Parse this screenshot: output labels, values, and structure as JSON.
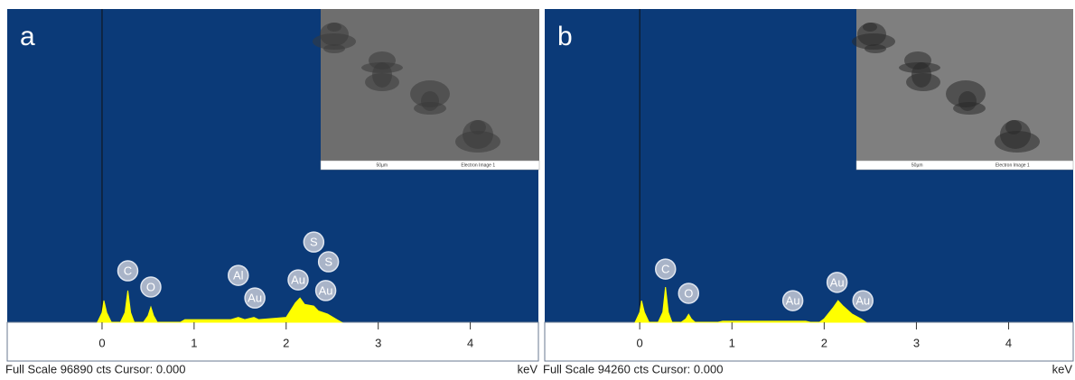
{
  "chart_data": [
    {
      "type": "area",
      "panel_label": "a",
      "color": "#ffff00",
      "x": [
        -0.05,
        0,
        0.02,
        0.05,
        0.1,
        0.2,
        0.25,
        0.28,
        0.31,
        0.35,
        0.45,
        0.5,
        0.53,
        0.56,
        0.6,
        0.85,
        0.9,
        1.4,
        1.48,
        1.55,
        1.65,
        1.7,
        2.0,
        2.1,
        2.15,
        2.2,
        2.3,
        2.35,
        2.45,
        2.55,
        2.6
      ],
      "values": [
        0,
        3000,
        6700,
        3000,
        0,
        0,
        3000,
        9800,
        3000,
        0,
        0,
        2000,
        4700,
        2000,
        0,
        0,
        800,
        800,
        1500,
        800,
        1500,
        800,
        1500,
        6000,
        7500,
        5500,
        5000,
        3500,
        2500,
        800,
        0
      ],
      "xlim": [
        -1.03,
        4.74
      ],
      "ylim": [
        0,
        96890
      ],
      "xticks": [
        0,
        1,
        2,
        3,
        4
      ],
      "x_unit": "keV",
      "footer": "Full Scale 96890 cts Cursor: 0.000",
      "inset_caption": [
        "50µm",
        "Electron Image 1"
      ],
      "peak_labels": [
        {
          "text": "C",
          "x": 0.28,
          "y": 15900
        },
        {
          "text": "O",
          "x": 0.53,
          "y": 10900
        },
        {
          "text": "Al",
          "x": 1.48,
          "y": 14500
        },
        {
          "text": "Au",
          "x": 1.66,
          "y": 7500
        },
        {
          "text": "Au",
          "x": 2.13,
          "y": 13100
        },
        {
          "text": "S",
          "x": 2.3,
          "y": 24800
        },
        {
          "text": "S",
          "x": 2.46,
          "y": 18700
        },
        {
          "text": "Au",
          "x": 2.43,
          "y": 9800
        }
      ]
    },
    {
      "type": "area",
      "panel_label": "b",
      "color": "#ffff00",
      "x": [
        -0.05,
        0,
        0.02,
        0.05,
        0.1,
        0.2,
        0.25,
        0.28,
        0.31,
        0.35,
        0.45,
        0.5,
        0.53,
        0.56,
        0.6,
        0.85,
        0.9,
        1.8,
        1.85,
        1.95,
        2.0,
        2.1,
        2.15,
        2.2,
        2.3,
        2.4,
        2.45
      ],
      "values": [
        0,
        3000,
        6500,
        3000,
        0,
        0,
        3000,
        10600,
        3000,
        0,
        0,
        1000,
        2400,
        1000,
        0,
        0,
        300,
        300,
        0,
        0,
        1000,
        4500,
        6500,
        5000,
        2500,
        1000,
        0
      ],
      "xlim": [
        -1.03,
        4.7
      ],
      "ylim": [
        0,
        94260
      ],
      "xticks": [
        0,
        1,
        2,
        3,
        4
      ],
      "x_unit": "keV",
      "footer": "Full Scale 94260 cts Cursor: 0.000",
      "inset_caption": [
        "50µm",
        "Electron Image 1"
      ],
      "peak_labels": [
        {
          "text": "C",
          "x": 0.28,
          "y": 16000
        },
        {
          "text": "O",
          "x": 0.53,
          "y": 8700
        },
        {
          "text": "Au",
          "x": 1.66,
          "y": 6500
        },
        {
          "text": "Au",
          "x": 2.14,
          "y": 12000
        },
        {
          "text": "Au",
          "x": 2.42,
          "y": 6500
        }
      ]
    }
  ]
}
